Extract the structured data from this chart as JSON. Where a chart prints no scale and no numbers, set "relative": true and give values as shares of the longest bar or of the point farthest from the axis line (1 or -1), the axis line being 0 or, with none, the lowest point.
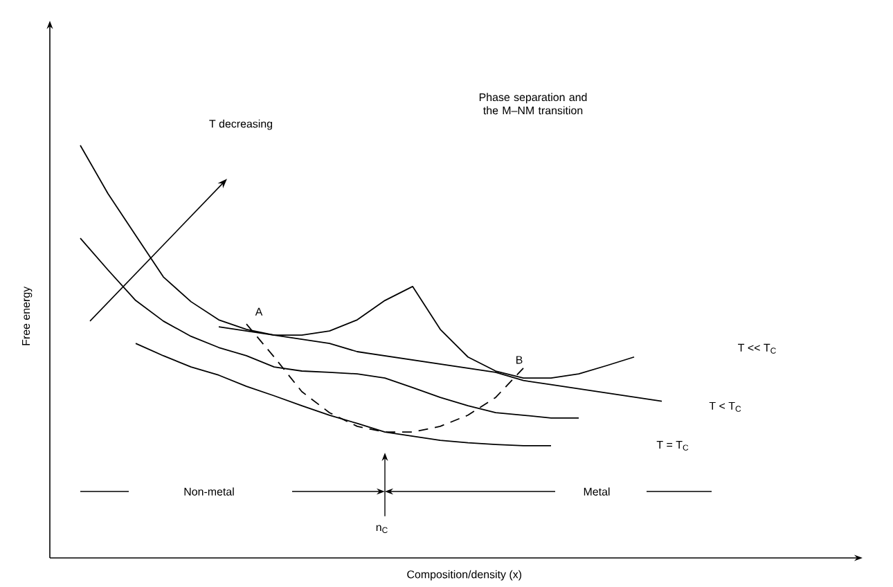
{
  "chart_data": {
    "type": "line",
    "relative": true,
    "title": "Phase separation and the M–NM transition",
    "xlabel": "Composition/density (x)",
    "ylabel": "Free energy",
    "legend": false,
    "categories": [
      null,
      null,
      null,
      null,
      null,
      null,
      null,
      null,
      null,
      null,
      null,
      null,
      null,
      null,
      null,
      null,
      null,
      null,
      null,
      null,
      null,
      null,
      null,
      null,
      null,
      null,
      null,
      null,
      null,
      null
    ],
    "annotations": [
      "T decreasing",
      "A",
      "B",
      "Non-metal",
      "Metal",
      "n$_{C}$"
    ],
    "series": [
      {
        "name": "T << T$_{C}$",
        "color": "#000000",
        "values": [
          null,
          1.0,
          0.883,
          0.782,
          0.681,
          0.621,
          0.577,
          0.554,
          0.54,
          0.54,
          0.55,
          0.577,
          0.624,
          0.658,
          0.554,
          0.487,
          0.453,
          0.436,
          0.436,
          0.446,
          0.466,
          0.487,
          null,
          null,
          null,
          null,
          null,
          null,
          null,
          null
        ]
      },
      {
        "color": "#000000",
        "values": [
          null,
          null,
          null,
          null,
          null,
          null,
          0.56,
          0.55,
          0.54,
          0.53,
          0.52,
          0.5,
          0.49,
          0.48,
          0.47,
          0.46,
          0.45,
          0.43,
          0.42,
          0.41,
          0.4,
          0.39,
          0.38,
          null,
          null,
          null,
          null,
          null,
          null,
          null
        ]
      },
      {
        "name": "T < T$_{C}$",
        "color": "#000000",
        "values": [
          null,
          0.775,
          0.698,
          0.624,
          0.574,
          0.537,
          0.51,
          0.49,
          0.463,
          0.453,
          0.45,
          0.446,
          0.436,
          0.413,
          0.389,
          0.369,
          0.352,
          0.346,
          0.339,
          0.339,
          null,
          null,
          null,
          null,
          null,
          null,
          null,
          null,
          null,
          null
        ]
      },
      {
        "name": "T = T$_{C}$",
        "color": "#000000",
        "values": [
          null,
          null,
          null,
          0.52,
          0.49,
          0.463,
          0.443,
          0.416,
          0.393,
          0.369,
          0.346,
          0.326,
          0.305,
          0.295,
          0.285,
          0.279,
          0.275,
          0.272,
          0.272,
          null,
          null,
          null,
          null,
          null,
          null,
          null,
          null,
          null,
          null,
          null
        ]
      },
      {
        "color": "#000000",
        "line_style": "dashed",
        "values": [
          null,
          null,
          null,
          null,
          null,
          null,
          null,
          0.567,
          0.487,
          0.403,
          0.352,
          0.319,
          0.305,
          0.305,
          0.319,
          0.346,
          0.389,
          0.46,
          null,
          null,
          null,
          null,
          null,
          null,
          null,
          null,
          null,
          null,
          null,
          null
        ]
      }
    ]
  }
}
